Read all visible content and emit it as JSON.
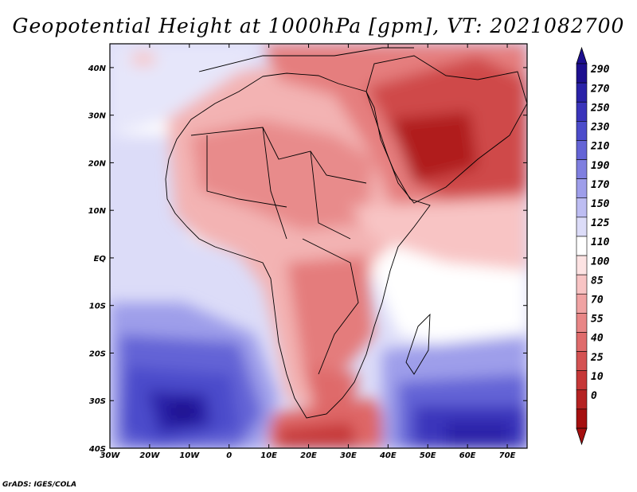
{
  "title": "Geopotential Height at 1000hPa [gpm], VT: 2021082700",
  "credit": "GrADS: IGES/COLA",
  "map": {
    "lon_range": [
      -30,
      75
    ],
    "lat_range": [
      -40,
      45
    ],
    "lon_ticks": [
      "30W",
      "20W",
      "10W",
      "0",
      "10E",
      "20E",
      "30E",
      "40E",
      "50E",
      "60E",
      "70E"
    ],
    "lat_ticks": [
      "40N",
      "30N",
      "20N",
      "10N",
      "EQ",
      "10S",
      "20S",
      "30S",
      "40S"
    ]
  },
  "colorbar": {
    "labels": [
      "290",
      "270",
      "250",
      "230",
      "210",
      "190",
      "170",
      "150",
      "125",
      "110",
      "100",
      "85",
      "70",
      "55",
      "40",
      "25",
      "10",
      "0"
    ],
    "colors": [
      "#1d0f8f",
      "#2a22a8",
      "#3a34bb",
      "#4c4ccb",
      "#6464d6",
      "#7f7fe0",
      "#9e9eea",
      "#bdbdf2",
      "#dcdcf8",
      "#ffffff",
      "#fde3e3",
      "#f8c4c4",
      "#f0a3a3",
      "#e88686",
      "#df6b6b",
      "#d45252",
      "#c63737",
      "#b52222",
      "#a50f0f"
    ]
  }
}
